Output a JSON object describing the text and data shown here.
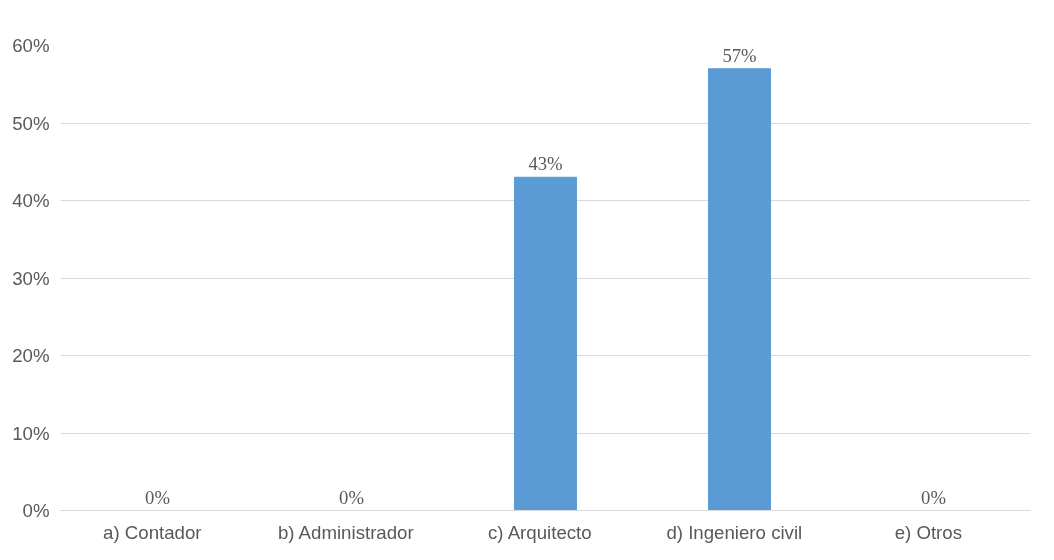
{
  "chart_data": {
    "type": "bar",
    "categories": [
      "a)   Contador",
      "b)   Administrador",
      "c)   Arquitecto",
      "d)   Ingeniero civil",
      "e)   Otros"
    ],
    "values": [
      0,
      0,
      43,
      57,
      0
    ],
    "value_labels": [
      "0%",
      "0%",
      "43%",
      "57%",
      "0%"
    ],
    "color": "#5b9bd5",
    "ylim": [
      0,
      60
    ],
    "yticks": [
      {
        "value": 0,
        "label": "0%"
      },
      {
        "value": 10,
        "label": "10%"
      },
      {
        "value": 20,
        "label": "20%"
      },
      {
        "value": 30,
        "label": "30%"
      },
      {
        "value": 40,
        "label": "40%"
      },
      {
        "value": 50,
        "label": "50%"
      },
      {
        "value": 60,
        "label": "60%"
      }
    ],
    "grid": "y"
  }
}
